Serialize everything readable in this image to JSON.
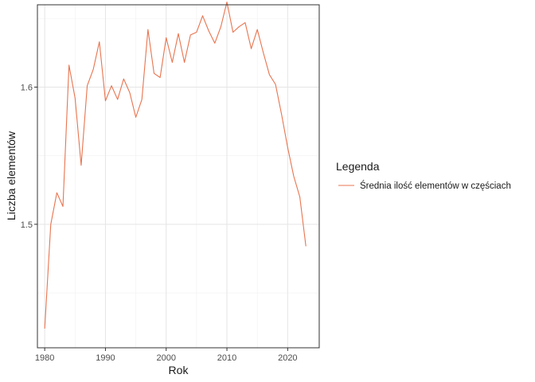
{
  "chart_data": {
    "type": "line",
    "xlabel": "Rok",
    "ylabel": "Liczba elementów",
    "xlim": [
      1978.8,
      2025.2
    ],
    "ylim": [
      1.41,
      1.66
    ],
    "x_ticks": [
      1980,
      1990,
      2000,
      2010,
      2020
    ],
    "y_ticks": [
      1.5,
      1.6
    ],
    "y_tick_labels": [
      "1.5",
      "1.6"
    ],
    "grid": true,
    "legend": {
      "title": "Legenda",
      "position": "right"
    },
    "series": [
      {
        "name": "Średnia ilość elementów w częściach",
        "color": "#e8744f",
        "x": [
          1980,
          1981,
          1982,
          1983,
          1984,
          1985,
          1986,
          1987,
          1988,
          1989,
          1990,
          1991,
          1992,
          1993,
          1994,
          1995,
          1996,
          1997,
          1998,
          1999,
          2000,
          2001,
          2002,
          2003,
          2004,
          2005,
          2006,
          2007,
          2008,
          2009,
          2010,
          2011,
          2012,
          2013,
          2014,
          2015,
          2016,
          2017,
          2018,
          2019,
          2020,
          2021,
          2022,
          2023
        ],
        "values": [
          1.424,
          1.5,
          1.523,
          1.513,
          1.616,
          1.592,
          1.543,
          1.601,
          1.613,
          1.633,
          1.59,
          1.601,
          1.591,
          1.606,
          1.596,
          1.578,
          1.591,
          1.642,
          1.61,
          1.607,
          1.636,
          1.618,
          1.639,
          1.618,
          1.638,
          1.64,
          1.652,
          1.641,
          1.632,
          1.644,
          1.662,
          1.64,
          1.644,
          1.647,
          1.628,
          1.642,
          1.625,
          1.609,
          1.602,
          1.58,
          1.556,
          1.535,
          1.52,
          1.484
        ]
      }
    ]
  }
}
